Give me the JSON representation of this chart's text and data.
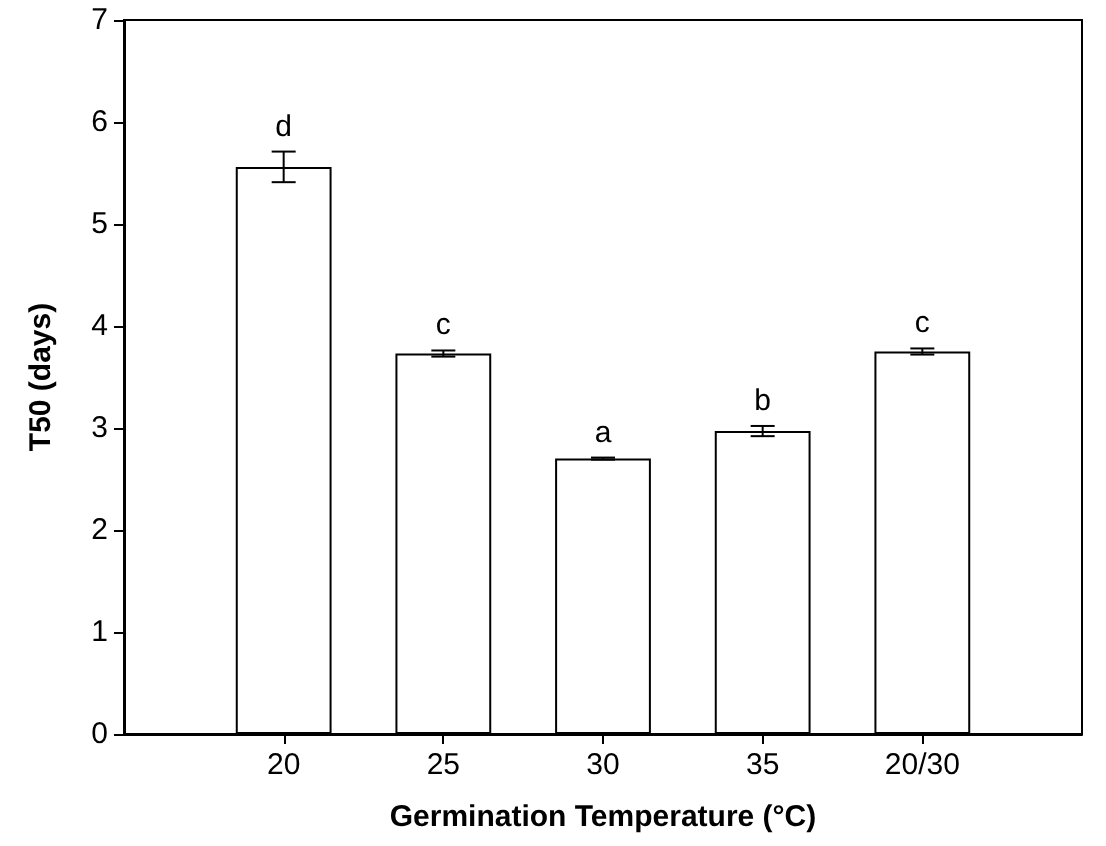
{
  "chart_data": {
    "type": "bar",
    "xlabel": "Germination Temperature (°C)",
    "ylabel": "T50 (days)",
    "categories": [
      "20",
      "25",
      "30",
      "35",
      "20/30"
    ],
    "values": [
      5.56,
      3.73,
      2.7,
      2.97,
      3.75
    ],
    "errors": [
      0.15,
      0.03,
      0.01,
      0.05,
      0.03
    ],
    "color": "#ffffff",
    "ylim": [
      0,
      7
    ],
    "yticks": [
      0,
      1,
      2,
      3,
      4,
      5,
      6,
      7
    ],
    "grid": false,
    "annotations": [
      {
        "text": "d",
        "x": "20",
        "y": 5.71
      },
      {
        "text": "c",
        "x": "25",
        "y": 3.76
      },
      {
        "text": "a",
        "x": "30",
        "y": 2.71
      },
      {
        "text": "b",
        "x": "35",
        "y": 3.02
      },
      {
        "text": "c",
        "x": "20/30",
        "y": 3.78
      }
    ]
  }
}
